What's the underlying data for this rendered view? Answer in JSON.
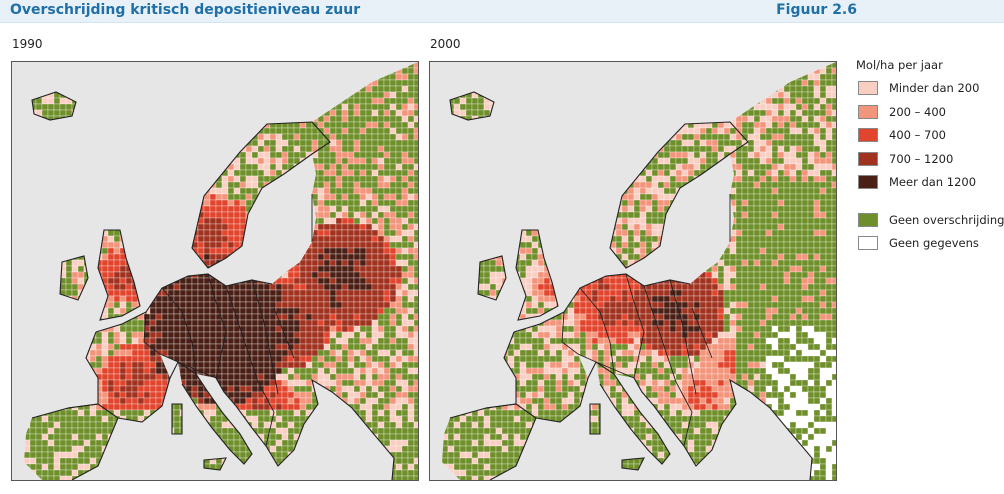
{
  "figure": {
    "title": "Overschrijding kritisch depositieniveau zuur",
    "number": "Figuur 2.6"
  },
  "maps": [
    {
      "year": "1990"
    },
    {
      "year": "2000"
    }
  ],
  "legend": {
    "title": "Mol/ha per jaar",
    "classes": [
      {
        "label": "Minder dan 200",
        "color": "#f9cfc3"
      },
      {
        "label": "200 – 400",
        "color": "#f3957a"
      },
      {
        "label": "400 – 700",
        "color": "#e2452d"
      },
      {
        "label": "700 – 1200",
        "color": "#a0321f"
      },
      {
        "label": "Meer dan 1200",
        "color": "#4a2016"
      }
    ],
    "other": [
      {
        "label": "Geen overschrijding",
        "color": "#6f8f2a"
      },
      {
        "label": "Geen gegevens",
        "color": "#ffffff"
      }
    ]
  },
  "colors": {
    "sea": "#e6e6e6",
    "land_no_data": "#ffffff",
    "grid_line": "#ffffff",
    "border": "#222222"
  }
}
